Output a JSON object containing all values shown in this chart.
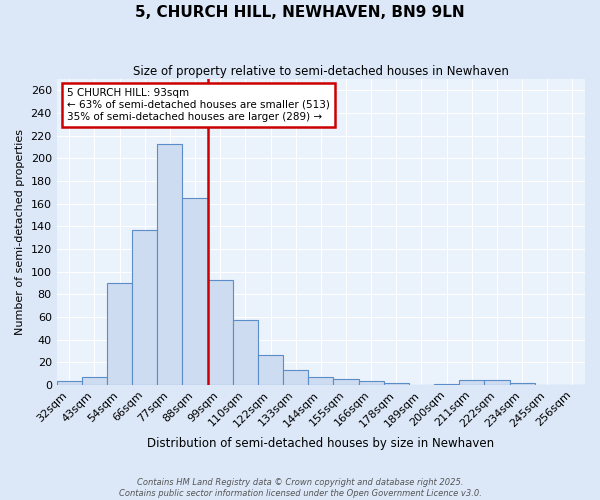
{
  "title": "5, CHURCH HILL, NEWHAVEN, BN9 9LN",
  "subtitle": "Size of property relative to semi-detached houses in Newhaven",
  "xlabel": "Distribution of semi-detached houses by size in Newhaven",
  "ylabel": "Number of semi-detached properties",
  "bin_labels": [
    "32sqm",
    "43sqm",
    "54sqm",
    "66sqm",
    "77sqm",
    "88sqm",
    "99sqm",
    "110sqm",
    "122sqm",
    "133sqm",
    "144sqm",
    "155sqm",
    "166sqm",
    "178sqm",
    "189sqm",
    "200sqm",
    "211sqm",
    "222sqm",
    "234sqm",
    "245sqm",
    "256sqm"
  ],
  "bar_values": [
    3,
    7,
    90,
    137,
    213,
    165,
    93,
    57,
    26,
    13,
    7,
    5,
    3,
    2,
    0,
    1,
    4,
    4,
    2,
    0,
    0
  ],
  "bar_color": "#cddcf0",
  "bar_edge_color": "#5b8dc8",
  "property_bin_index": 5,
  "annotation_title": "5 CHURCH HILL: 93sqm",
  "annotation_line1": "← 63% of semi-detached houses are smaller (513)",
  "annotation_line2": "35% of semi-detached houses are larger (289) →",
  "annotation_box_facecolor": "#ffffff",
  "annotation_box_edgecolor": "#cc0000",
  "vline_color": "#cc0000",
  "ylim_max": 270,
  "ytick_step": 20,
  "footer_line1": "Contains HM Land Registry data © Crown copyright and database right 2025.",
  "footer_line2": "Contains public sector information licensed under the Open Government Licence v3.0.",
  "fig_bg_color": "#dce8f8",
  "plot_bg_color": "#eaf2fc",
  "grid_color": "#ffffff"
}
